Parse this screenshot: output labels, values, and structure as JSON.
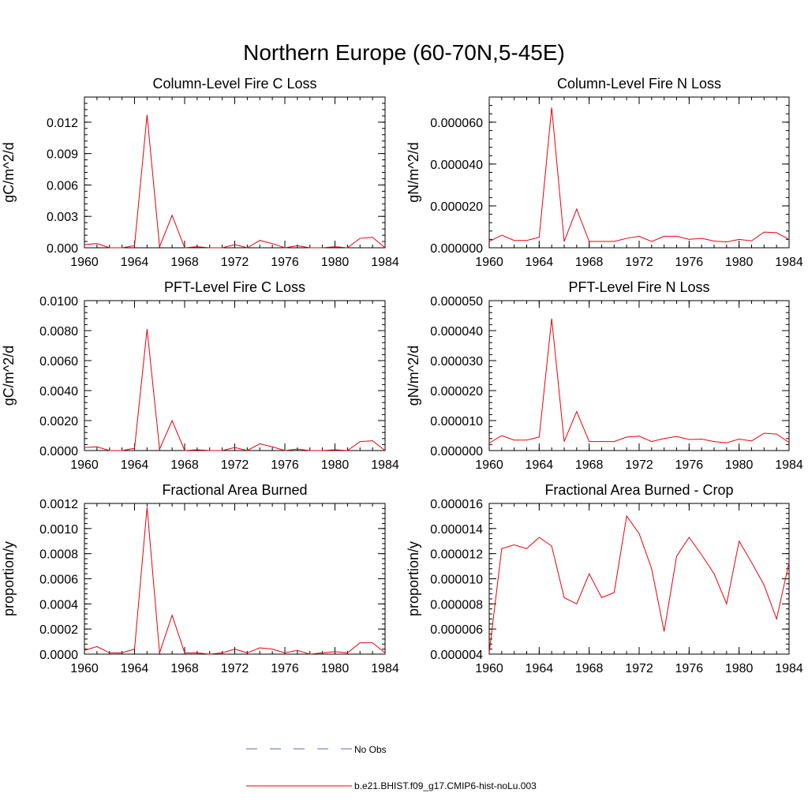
{
  "figure": {
    "title": "Northern Europe (60-70N,5-45E)"
  },
  "colors": {
    "model": "#e8000b",
    "obs": "#5a66b6"
  },
  "legend": {
    "entries": [
      {
        "label": "No Obs",
        "style": "dashed",
        "color": "#5a66b6"
      },
      {
        "label": "b.e21.BHIST.f09_g17.CMIP6-hist-noLu.003",
        "style": "solid",
        "color": "#e8000b"
      }
    ]
  },
  "chart_data": [
    {
      "type": "line",
      "title": "Column-Level Fire C Loss",
      "ylabel": "gC/m^2/d",
      "xlim": [
        1960,
        1984
      ],
      "ylim": [
        0,
        0.0144
      ],
      "xticks": [
        1960,
        1964,
        1968,
        1972,
        1976,
        1980,
        1984
      ],
      "yticks": [
        0,
        0.003,
        0.006,
        0.009,
        0.012
      ],
      "ytick_labels": [
        "0.000",
        "0.003",
        "0.006",
        "0.009",
        "0.012"
      ],
      "x": [
        1960,
        1961,
        1962,
        1963,
        1964,
        1965,
        1966,
        1967,
        1968,
        1969,
        1970,
        1971,
        1972,
        1973,
        1974,
        1975,
        1976,
        1977,
        1978,
        1979,
        1980,
        1981,
        1982,
        1983,
        1984
      ],
      "series": [
        {
          "name": "b.e21.BHIST.f09_g17.CMIP6-hist-noLu.003",
          "values": [
            0.0003,
            0.0004,
            0.0,
            0.0,
            0.0002,
            0.0127,
            0.0001,
            0.0031,
            0.0,
            0.0001,
            0.0,
            0.0,
            0.0003,
            0.0,
            0.0007,
            0.0004,
            0.0,
            0.0002,
            0.0,
            0.0,
            0.0001,
            0.0,
            0.0009,
            0.001,
            0.0
          ]
        }
      ]
    },
    {
      "type": "line",
      "title": "Column-Level Fire N Loss",
      "ylabel": "gN/m^2/d",
      "xlim": [
        1960,
        1984
      ],
      "ylim": [
        0,
        7.2e-05
      ],
      "xticks": [
        1960,
        1964,
        1968,
        1972,
        1976,
        1980,
        1984
      ],
      "yticks": [
        0,
        2e-05,
        4e-05,
        6e-05
      ],
      "ytick_labels": [
        "0.000000",
        "0.000020",
        "0.000040",
        "0.000060"
      ],
      "x": [
        1960,
        1961,
        1962,
        1963,
        1964,
        1965,
        1966,
        1967,
        1968,
        1969,
        1970,
        1971,
        1972,
        1973,
        1974,
        1975,
        1976,
        1977,
        1978,
        1979,
        1980,
        1981,
        1982,
        1983,
        1984
      ],
      "series": [
        {
          "name": "b.e21.BHIST.f09_g17.CMIP6-hist-noLu.003",
          "values": [
            3e-06,
            6e-06,
            3.5e-06,
            3.5e-06,
            5e-06,
            6.7e-05,
            3e-06,
            1.85e-05,
            3e-06,
            3e-06,
            3e-06,
            4.5e-06,
            5.5e-06,
            3e-06,
            5.5e-06,
            5.5e-06,
            4e-06,
            4.5e-06,
            3.2e-06,
            2.8e-06,
            4e-06,
            3.3e-06,
            7.5e-06,
            7.2e-06,
            4e-06
          ]
        }
      ]
    },
    {
      "type": "line",
      "title": "PFT-Level Fire C Loss",
      "ylabel": "gC/m^2/d",
      "xlim": [
        1960,
        1984
      ],
      "ylim": [
        0,
        0.01
      ],
      "xticks": [
        1960,
        1964,
        1968,
        1972,
        1976,
        1980,
        1984
      ],
      "yticks": [
        0,
        0.002,
        0.004,
        0.006,
        0.008,
        0.01
      ],
      "ytick_labels": [
        "0.0000",
        "0.0020",
        "0.0040",
        "0.0060",
        "0.0080",
        "0.0100"
      ],
      "x": [
        1960,
        1961,
        1962,
        1963,
        1964,
        1965,
        1966,
        1967,
        1968,
        1969,
        1970,
        1971,
        1972,
        1973,
        1974,
        1975,
        1976,
        1977,
        1978,
        1979,
        1980,
        1981,
        1982,
        1983,
        1984
      ],
      "series": [
        {
          "name": "b.e21.BHIST.f09_g17.CMIP6-hist-noLu.003",
          "values": [
            0.0002,
            0.00025,
            0.0,
            0.0,
            0.00015,
            0.0081,
            0.0001,
            0.002,
            0.0,
            5e-05,
            0.0,
            0.0,
            0.0002,
            0.0,
            0.00045,
            0.00025,
            0.0,
            0.0001,
            0.0,
            0.0,
            5e-05,
            0.0,
            0.0006,
            0.00065,
            0.0
          ]
        }
      ]
    },
    {
      "type": "line",
      "title": "PFT-Level Fire N Loss",
      "ylabel": "gN/m^2/d",
      "xlim": [
        1960,
        1984
      ],
      "ylim": [
        0,
        5e-05
      ],
      "xticks": [
        1960,
        1964,
        1968,
        1972,
        1976,
        1980,
        1984
      ],
      "yticks": [
        0,
        1e-05,
        2e-05,
        3e-05,
        4e-05,
        5e-05
      ],
      "ytick_labels": [
        "0.000000",
        "0.000010",
        "0.000020",
        "0.000030",
        "0.000040",
        "0.000050"
      ],
      "x": [
        1960,
        1961,
        1962,
        1963,
        1964,
        1965,
        1966,
        1967,
        1968,
        1969,
        1970,
        1971,
        1972,
        1973,
        1974,
        1975,
        1976,
        1977,
        1978,
        1979,
        1980,
        1981,
        1982,
        1983,
        1984
      ],
      "series": [
        {
          "name": "b.e21.BHIST.f09_g17.CMIP6-hist-noLu.003",
          "values": [
            2.5e-06,
            5e-06,
            3.5e-06,
            3.5e-06,
            4.5e-06,
            4.4e-05,
            3e-06,
            1.3e-05,
            3e-06,
            3e-06,
            3e-06,
            4.5e-06,
            4.8e-06,
            3e-06,
            4e-06,
            4.7e-06,
            3.7e-06,
            3.8e-06,
            3e-06,
            2.6e-06,
            3.8e-06,
            3.2e-06,
            5.8e-06,
            5.5e-06,
            2.7e-06
          ]
        }
      ]
    },
    {
      "type": "line",
      "title": "Fractional Area Burned",
      "ylabel": "proportion/y",
      "xlim": [
        1960,
        1984
      ],
      "ylim": [
        0,
        0.0012
      ],
      "xticks": [
        1960,
        1964,
        1968,
        1972,
        1976,
        1980,
        1984
      ],
      "yticks": [
        0,
        0.0002,
        0.0004,
        0.0006,
        0.0008,
        0.001,
        0.0012
      ],
      "ytick_labels": [
        "0.0000",
        "0.0002",
        "0.0004",
        "0.0006",
        "0.0008",
        "0.0010",
        "0.0012"
      ],
      "x": [
        1960,
        1961,
        1962,
        1963,
        1964,
        1965,
        1966,
        1967,
        1968,
        1969,
        1970,
        1971,
        1972,
        1973,
        1974,
        1975,
        1976,
        1977,
        1978,
        1979,
        1980,
        1981,
        1982,
        1983,
        1984
      ],
      "series": [
        {
          "name": "b.e21.BHIST.f09_g17.CMIP6-hist-noLu.003",
          "values": [
            3e-05,
            6e-05,
            1e-05,
            1e-05,
            4e-05,
            0.00117,
            1e-05,
            0.00031,
            1e-05,
            1e-05,
            0.0,
            1e-05,
            4e-05,
            1e-05,
            5e-05,
            4e-05,
            1e-05,
            3e-05,
            0.0,
            1e-05,
            2e-05,
            1e-05,
            9e-05,
            9e-05,
            1e-05
          ]
        }
      ]
    },
    {
      "type": "line",
      "title": "Fractional Area Burned - Crop",
      "ylabel": "proportion/y",
      "xlim": [
        1960,
        1984
      ],
      "ylim": [
        4e-06,
        1.6e-05
      ],
      "xticks": [
        1960,
        1964,
        1968,
        1972,
        1976,
        1980,
        1984
      ],
      "yticks": [
        4e-06,
        6e-06,
        8e-06,
        1e-05,
        1.2e-05,
        1.4e-05,
        1.6e-05
      ],
      "ytick_labels": [
        "0.000004",
        "0.000006",
        "0.000008",
        "0.000010",
        "0.000012",
        "0.000014",
        "0.000016"
      ],
      "x": [
        1960,
        1961,
        1962,
        1963,
        1964,
        1965,
        1966,
        1967,
        1968,
        1969,
        1970,
        1971,
        1972,
        1973,
        1974,
        1975,
        1976,
        1977,
        1978,
        1979,
        1980,
        1981,
        1982,
        1983,
        1984
      ],
      "series": [
        {
          "name": "b.e21.BHIST.f09_g17.CMIP6-hist-noLu.003",
          "values": [
            4.1e-06,
            1.24e-05,
            1.27e-05,
            1.24e-05,
            1.33e-05,
            1.26e-05,
            8.5e-06,
            8e-06,
            1.04e-05,
            8.5e-06,
            8.9e-06,
            1.5e-05,
            1.36e-05,
            1.08e-05,
            5.8e-06,
            1.18e-05,
            1.33e-05,
            1.19e-05,
            1.04e-05,
            8e-06,
            1.3e-05,
            1.13e-05,
            9.5e-06,
            6.8e-06,
            1.13e-05
          ]
        }
      ]
    }
  ]
}
